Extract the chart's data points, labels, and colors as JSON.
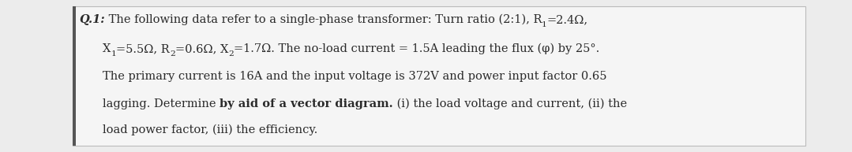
{
  "figsize": [
    10.79,
    1.93
  ],
  "dpi": 100,
  "bg_color": "#ececec",
  "box_color": "#f5f5f5",
  "text_color": "#2a2a2a",
  "left_bar_color": "#555555",
  "font_size": 10.5,
  "font_family": "DejaVu Serif",
  "line1_q": "Q.1:",
  "line1_rest": " The following data refer to a single-phase transformer: Turn ratio (2:1), R",
  "line1_end": "=2.4Ω,",
  "line2_a": "X",
  "line2_b": "=5.5Ω, R",
  "line2_c": "=0.6Ω, X",
  "line2_d": "=1.7Ω. The no-load current = 1.5A leading the flux (φ) by 25°.",
  "line3": "The primary current is 16A and the input voltage is 372V and power input factor 0.65",
  "line4a": "lagging. Determine ",
  "line4b": "by aid of a vector diagram.",
  "line4c": " (i) the load voltage and current, (ii) the",
  "line5": "load power factor, (iii) the efficiency."
}
